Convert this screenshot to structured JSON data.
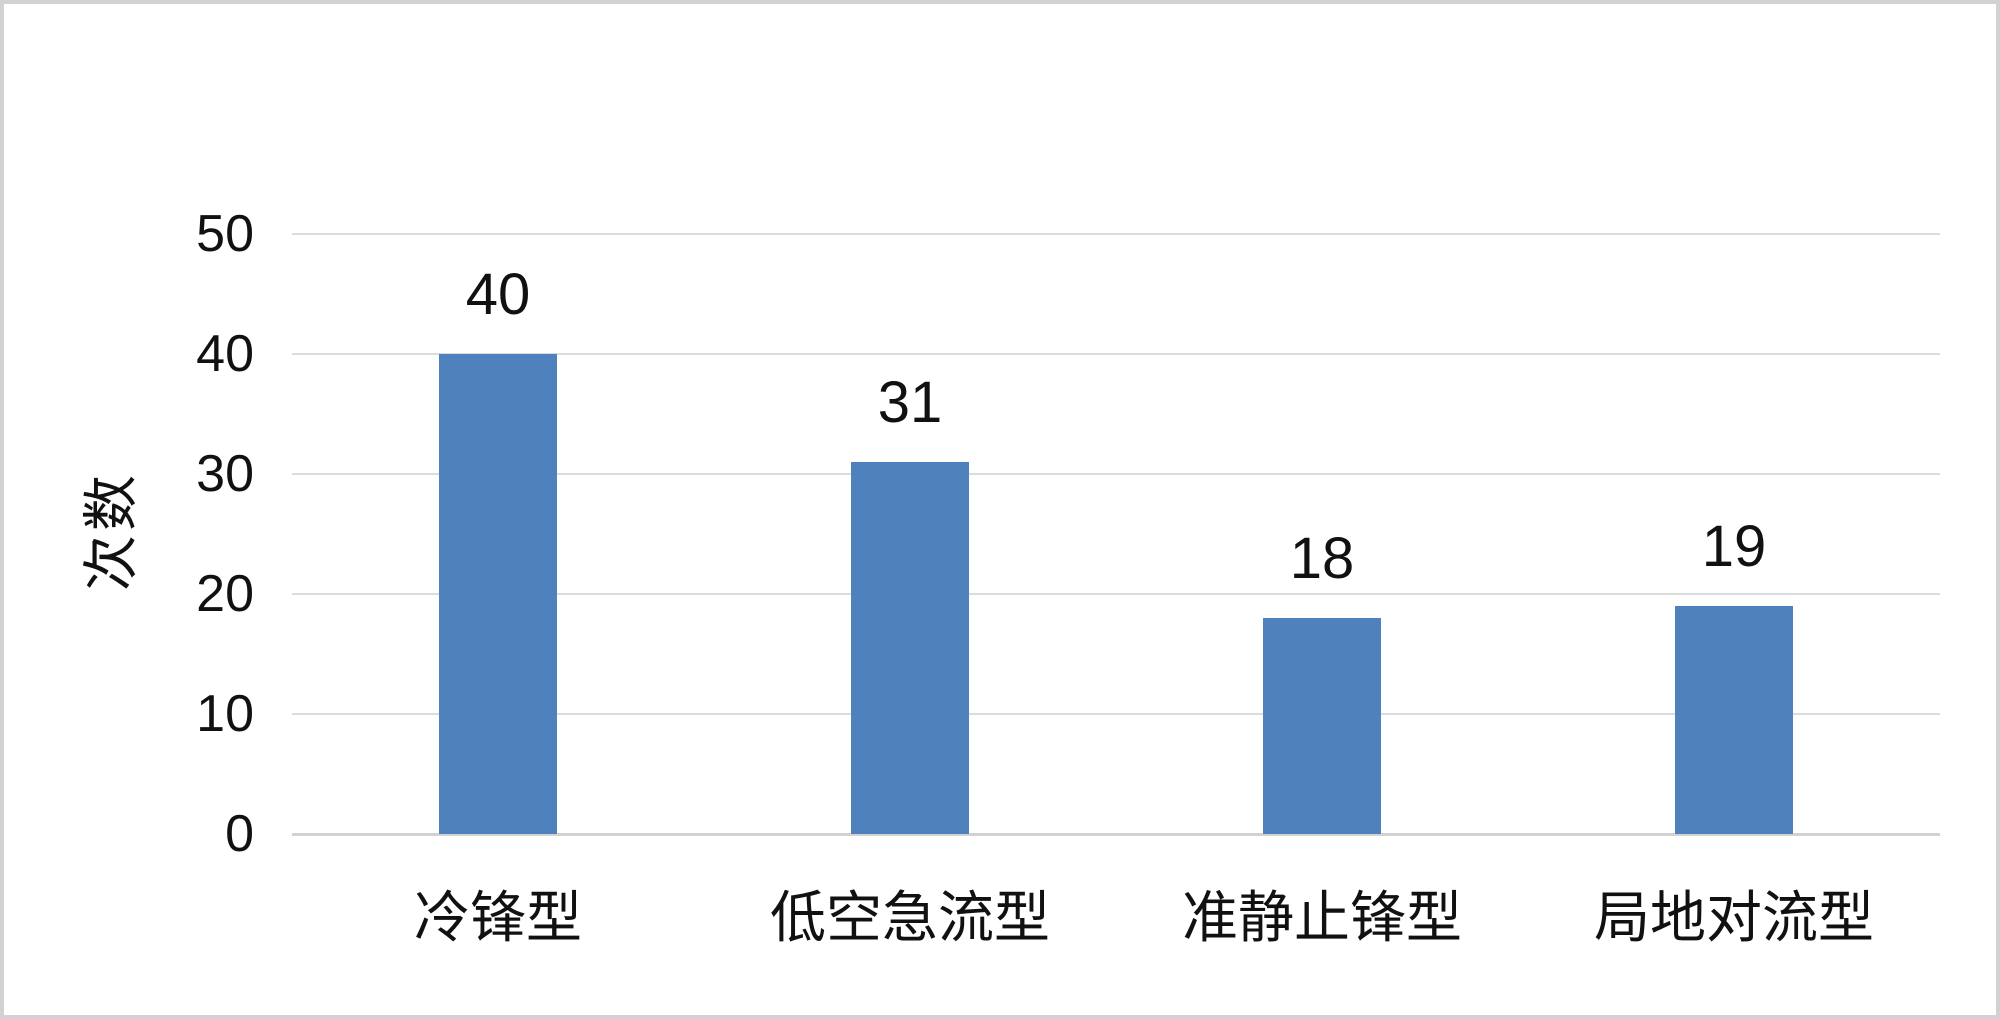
{
  "chart_data": {
    "type": "bar",
    "categories": [
      "冷锋型",
      "低空急流型",
      "准静止锋型",
      "局地对流型"
    ],
    "values": [
      40,
      31,
      18,
      19
    ],
    "data_labels": [
      "40",
      "31",
      "18",
      "19"
    ],
    "title": "",
    "xlabel": "",
    "ylabel": "次数",
    "ylim": [
      0,
      50
    ],
    "yticks": [
      0,
      10,
      20,
      30,
      40,
      50
    ],
    "grid": "horizontal-only",
    "legend": "none",
    "bar_color": "#4f81bd",
    "gridline_color": "#dcdcdc",
    "text_color": "#111111",
    "frame_color": "#d2d2d2",
    "background_color": "#ffffff"
  }
}
